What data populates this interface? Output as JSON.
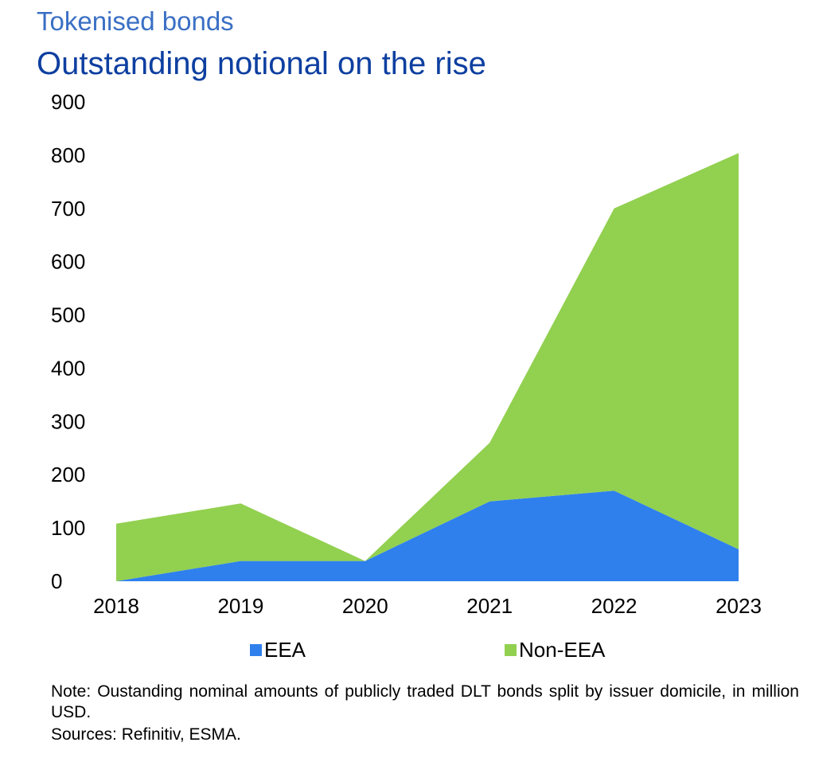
{
  "chart_data": {
    "type": "area",
    "stacked": true,
    "kicker": "Tokenised bonds",
    "title": "Outstanding notional on the rise",
    "x": [
      "2018",
      "2019",
      "2020",
      "2021",
      "2022",
      "2023"
    ],
    "series": [
      {
        "name": "EEA",
        "color": "#2f80ed",
        "values": [
          0,
          38,
          38,
          150,
          170,
          60
        ]
      },
      {
        "name": "Non-EEA",
        "color": "#92d050",
        "values": [
          108,
          108,
          0,
          110,
          530,
          744
        ]
      }
    ],
    "ylim": [
      0,
      900
    ],
    "yticks": [
      "0",
      "100",
      "200",
      "300",
      "400",
      "500",
      "600",
      "700",
      "800",
      "900"
    ],
    "grid": false,
    "legend": "bottom"
  },
  "footer": {
    "note": "Note: Oustanding nominal amounts of publicly traded DLT bonds split by issuer domicile, in million USD.",
    "sources": "Sources: Refinitiv, ESMA."
  }
}
